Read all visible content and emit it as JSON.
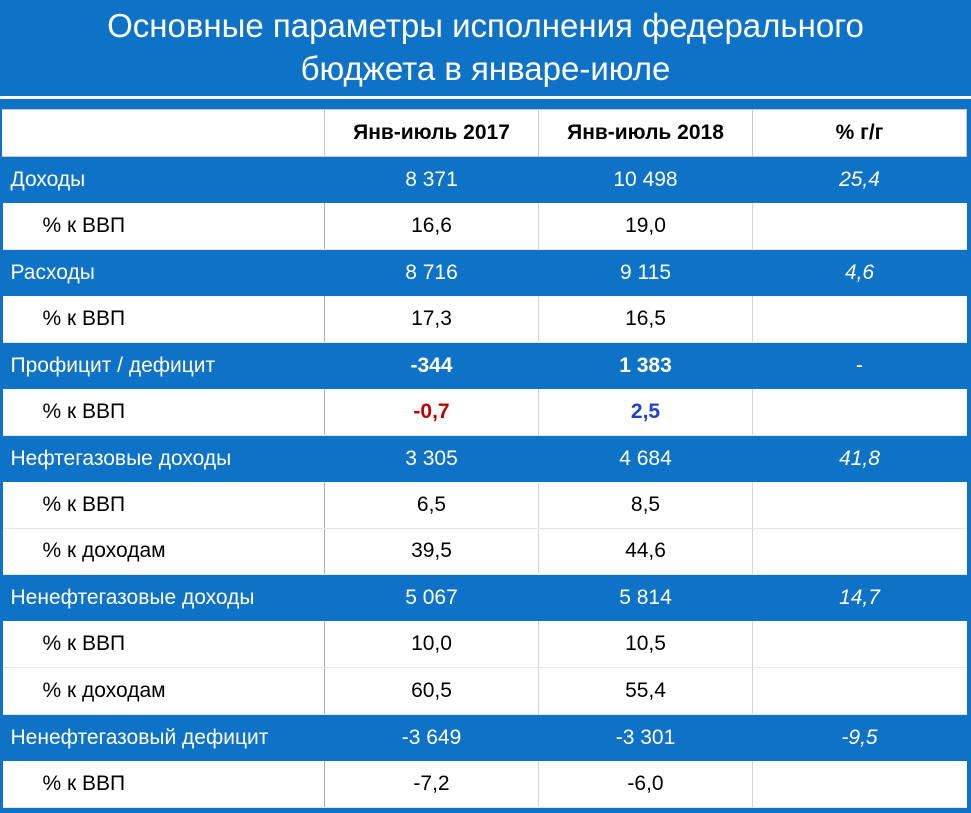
{
  "title": {
    "line1": "Основные параметры исполнения федерального",
    "line2": "бюджета в январе-июле"
  },
  "columns": [
    "",
    "Янв-июль 2017",
    "Янв-июль 2018",
    "% г/г"
  ],
  "rows": [
    {
      "type": "category",
      "label": "Доходы",
      "v2017": "8 371",
      "v2018": "10 498",
      "yy": "25,4"
    },
    {
      "type": "sub",
      "label": "% к ВВП",
      "v2017": "16,6",
      "v2018": "19,0",
      "yy": ""
    },
    {
      "type": "category",
      "label": "Расходы",
      "v2017": "8 716",
      "v2018": "9 115",
      "yy": "4,6"
    },
    {
      "type": "sub",
      "label": "% к ВВП",
      "v2017": "17,3",
      "v2018": "16,5",
      "yy": ""
    },
    {
      "type": "category",
      "label": "Профицит / дефицит",
      "v2017": "-344",
      "v2018": "1 383",
      "yy": "-"
    },
    {
      "type": "sub",
      "label": "% к ВВП",
      "v2017": "-0,7",
      "v2018": "2,5",
      "yy": ""
    },
    {
      "type": "category",
      "label": "Нефтегазовые доходы",
      "v2017": "3 305",
      "v2018": "4 684",
      "yy": "41,8"
    },
    {
      "type": "sub",
      "label": "% к ВВП",
      "v2017": "6,5",
      "v2018": "8,5",
      "yy": ""
    },
    {
      "type": "sub",
      "label": "% к доходам",
      "v2017": "39,5",
      "v2018": "44,6",
      "yy": ""
    },
    {
      "type": "category",
      "label": "Ненефтегазовые доходы",
      "v2017": "5 067",
      "v2018": "5 814",
      "yy": "14,7"
    },
    {
      "type": "sub",
      "label": "% к ВВП",
      "v2017": "10,0",
      "v2018": "10,5",
      "yy": ""
    },
    {
      "type": "sub",
      "label": "% к доходам",
      "v2017": "60,5",
      "v2018": "55,4",
      "yy": ""
    },
    {
      "type": "category",
      "label": "Ненефтегазовый дефицит",
      "v2017": "-3 649",
      "v2018": "-3 301",
      "yy": "-9,5"
    },
    {
      "type": "sub",
      "label": "% к ВВП",
      "v2017": "-7,2",
      "v2018": "-6,0",
      "yy": ""
    }
  ],
  "colors": {
    "header_bg": "#0e73c6",
    "negative_highlight": "#c00000",
    "positive_highlight": "#1f3fd1"
  }
}
